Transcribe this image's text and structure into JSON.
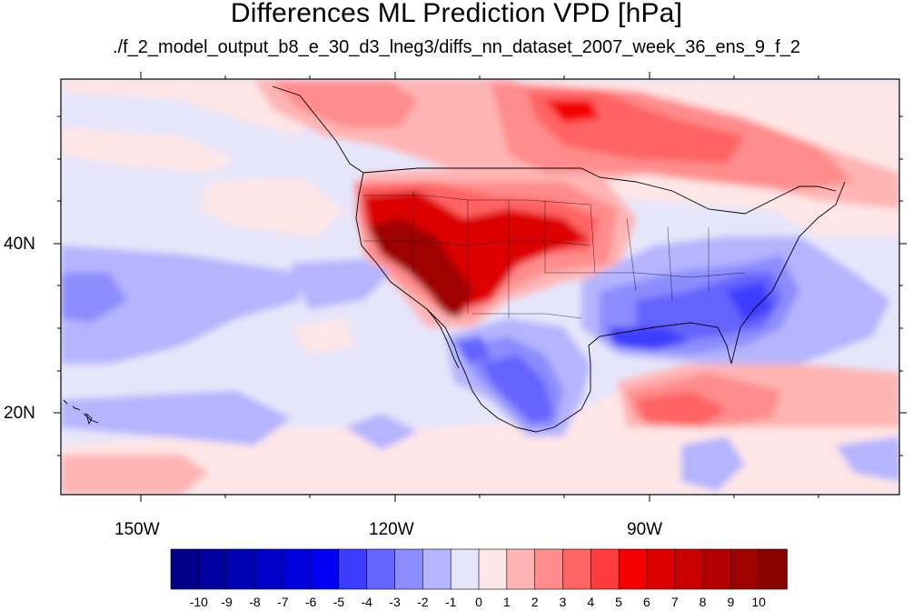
{
  "title": "Differences ML Prediction VPD [hPa]",
  "subtitle": "./f_2_model_output_b8_e_30_d3_lneg3/diffs_nn_dataset_2007_week_36_ens_9_f_2",
  "axes": {
    "x_ticks": [
      {
        "label": "150W",
        "lon": -150
      },
      {
        "label": "120W",
        "lon": -120
      },
      {
        "label": "90W",
        "lon": -90
      }
    ],
    "y_ticks": [
      {
        "label": "40N",
        "lat": 40
      },
      {
        "label": "20N",
        "lat": 20
      }
    ],
    "lon_range": [
      -159,
      -61
    ],
    "lat_range": [
      11,
      60
    ]
  },
  "colorbar": {
    "labels": [
      "-10",
      "-9",
      "-8",
      "-7",
      "-6",
      "-5",
      "-4",
      "-3",
      "-2",
      "-1",
      "0",
      "1",
      "2",
      "3",
      "4",
      "5",
      "6",
      "7",
      "8",
      "9",
      "10"
    ],
    "colors": [
      "#00008b",
      "#00009f",
      "#0000b4",
      "#0000c8",
      "#0000dc",
      "#0000f5",
      "#3c3cff",
      "#6464ff",
      "#8c8cff",
      "#b4b4ff",
      "#e6e6fa",
      "#ffe6e6",
      "#ffb4b4",
      "#ff8c8c",
      "#ff6464",
      "#ff3c3c",
      "#f50000",
      "#dc0000",
      "#c80000",
      "#b40000",
      "#9f0000",
      "#8b0000"
    ]
  },
  "colors": {
    "frame": "#000000",
    "border": "#000000",
    "ocean_background": "#e6e6fa"
  }
}
